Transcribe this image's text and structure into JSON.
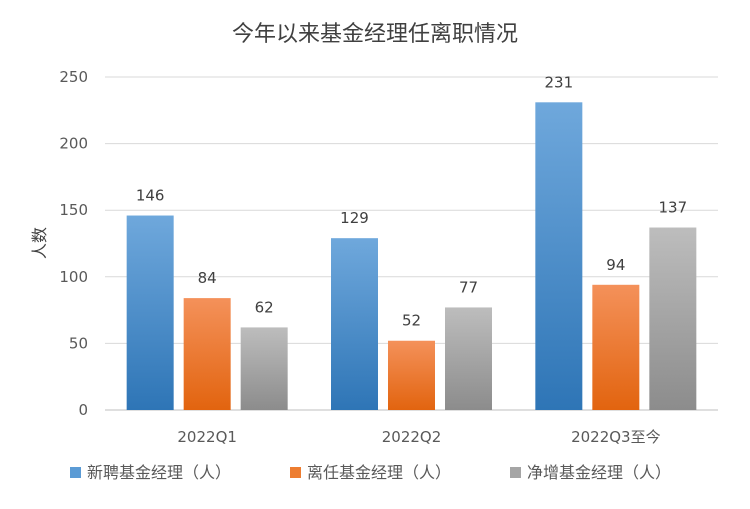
{
  "chart_data": {
    "type": "bar",
    "title": "今年以来基金经理任离职情况",
    "xlabel": "",
    "ylabel": "人数",
    "categories": [
      "2022Q1",
      "2022Q2",
      "2022Q3至今"
    ],
    "series": [
      {
        "name": "新聘基金经理（人）",
        "values": [
          146,
          129,
          231
        ],
        "color": "#5b9bd5"
      },
      {
        "name": "离任基金经理（人）",
        "values": [
          84,
          52,
          94
        ],
        "color": "#ed7d31"
      },
      {
        "name": "净增基金经理（人）",
        "values": [
          62,
          77,
          137
        ],
        "color": "#a5a5a5"
      }
    ],
    "ylim": [
      0,
      250
    ],
    "yticks": [
      0,
      50,
      100,
      150,
      200,
      250
    ],
    "grid": true,
    "legend_position": "bottom",
    "data_labels": true
  }
}
